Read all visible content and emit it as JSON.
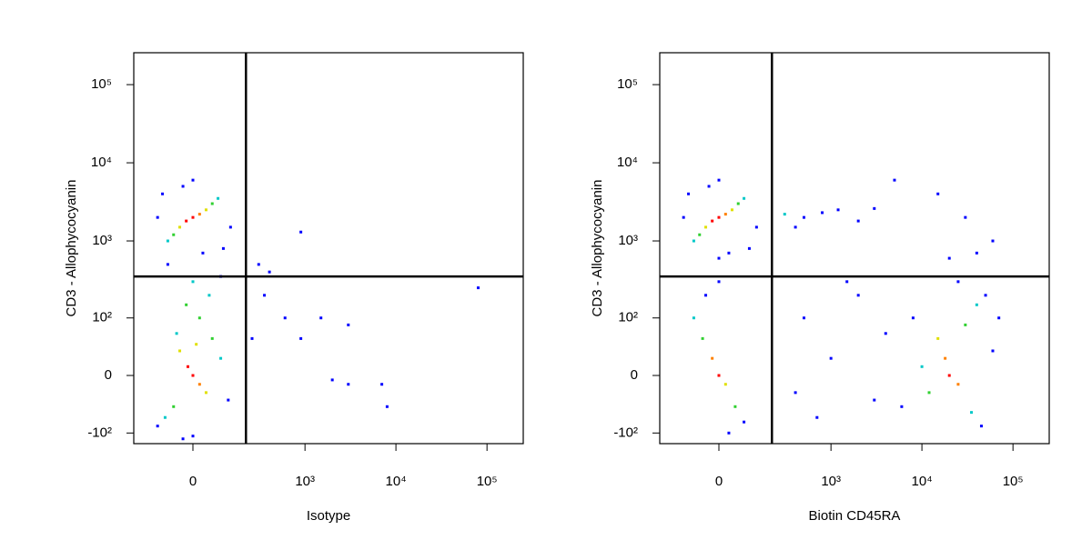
{
  "chart_data": [
    {
      "type": "scatter",
      "x_label": "Isotype",
      "y_label": "CD3 - Allophycocyanin",
      "xlim": [
        -250,
        250000
      ],
      "ylim": [
        -139,
        256000
      ],
      "xticks": [
        0,
        {
          "value": 1000,
          "label": "10³"
        },
        {
          "value": 10000,
          "label": "10⁴"
        },
        {
          "value": 100000,
          "label": "10⁵"
        }
      ],
      "yticks": [
        {
          "value": -100,
          "label": "-10²"
        },
        0,
        {
          "value": 100,
          "label": "10²"
        },
        {
          "value": 1000,
          "label": "10³"
        },
        {
          "value": 10000,
          "label": "10⁴"
        },
        {
          "value": 100000,
          "label": "10⁵"
        }
      ],
      "quadrant": {
        "x": 210,
        "y": 350
      },
      "x": [
        0,
        -20,
        20,
        -40,
        40,
        -60,
        60,
        -80,
        80,
        -100,
        100,
        0,
        -120,
        130,
        30,
        -30,
        0,
        -20,
        20,
        -50,
        50,
        -80,
        90,
        10,
        0,
        -15,
        20,
        -40,
        40,
        -60,
        60,
        -90,
        90,
        -120,
        120,
        0,
        -30,
        300,
        400,
        900,
        350,
        600,
        1500,
        3000,
        900,
        2000,
        3000,
        7000,
        8000,
        80000,
        250
      ],
      "y": [
        2000,
        1800,
        2200,
        1500,
        2500,
        1200,
        3000,
        1000,
        3500,
        4000,
        800,
        6000,
        2000,
        1500,
        700,
        5000,
        300,
        150,
        100,
        60,
        200,
        500,
        350,
        40,
        0,
        10,
        -10,
        30,
        -20,
        -40,
        50,
        -60,
        20,
        -80,
        -30,
        -110,
        -120,
        500,
        400,
        1300,
        200,
        100,
        100,
        80,
        50,
        -5,
        -10,
        -10,
        -40,
        250,
        50
      ],
      "colors": [
        "#ff0000",
        "#ff0000",
        "#ff8000",
        "#e0e000",
        "#e0e000",
        "#30d030",
        "#30d030",
        "#00c8c8",
        "#00c8c8",
        "#0000ff",
        "#0000ff",
        "#0000ff",
        "#0000ff",
        "#0000ff",
        "#0000ff",
        "#0000ff",
        "#00c8c8",
        "#30d030",
        "#30d030",
        "#00c8c8",
        "#00c8c8",
        "#0000ff",
        "#0000ff",
        "#e0e000",
        "#ff0000",
        "#ff0000",
        "#ff8000",
        "#e0e000",
        "#e0e000",
        "#30d030",
        "#30d030",
        "#00c8c8",
        "#00c8c8",
        "#0000ff",
        "#0000ff",
        "#0000ff",
        "#0000ff",
        "#0000ff",
        "#0000ff",
        "#0000ff",
        "#0000ff",
        "#0000ff",
        "#0000ff",
        "#0000ff",
        "#0000ff",
        "#0000ff",
        "#0000ff",
        "#0000ff",
        "#0000ff",
        "#0000ff",
        "#0000ff"
      ]
    },
    {
      "type": "scatter",
      "x_label": "Biotin CD45RA",
      "y_label": "CD3 - Allophycocyanin",
      "xlim": [
        -250,
        250000
      ],
      "ylim": [
        -139,
        256000
      ],
      "xticks": [
        0,
        {
          "value": 1000,
          "label": "10³"
        },
        {
          "value": 10000,
          "label": "10⁴"
        },
        {
          "value": 100000,
          "label": "10⁵"
        }
      ],
      "yticks": [
        {
          "value": -100,
          "label": "-10²"
        },
        0,
        {
          "value": 100,
          "label": "10²"
        },
        {
          "value": 1000,
          "label": "10³"
        },
        {
          "value": 10000,
          "label": "10⁴"
        },
        {
          "value": 100000,
          "label": "10⁵"
        }
      ],
      "quadrant": {
        "x": 210,
        "y": 350
      },
      "x": [
        0,
        -20,
        20,
        -40,
        40,
        -60,
        60,
        -80,
        80,
        -100,
        100,
        0,
        -120,
        130,
        30,
        -30,
        300,
        500,
        800,
        1200,
        2000,
        400,
        3000,
        5000,
        15000,
        30000,
        20000,
        40000,
        60000,
        0,
        -20,
        20,
        -50,
        50,
        -80,
        80,
        0,
        -40,
        30,
        0,
        20000,
        18000,
        25000,
        15000,
        30000,
        12000,
        40000,
        10000,
        35000,
        50000,
        8000,
        60000,
        45000,
        25000,
        6000,
        70000,
        500,
        1000,
        2000,
        3000,
        700,
        1500,
        4000,
        400
      ],
      "y": [
        2000,
        1800,
        2200,
        1500,
        2500,
        1200,
        3000,
        1000,
        3500,
        4000,
        800,
        6000,
        2000,
        1500,
        700,
        5000,
        2200,
        2000,
        2300,
        2500,
        1800,
        1500,
        2600,
        6000,
        4000,
        2000,
        600,
        700,
        1000,
        0,
        20,
        -10,
        50,
        -40,
        100,
        -70,
        300,
        200,
        -100,
        600,
        0,
        20,
        -10,
        50,
        80,
        -20,
        150,
        10,
        -50,
        200,
        100,
        30,
        -80,
        300,
        -40,
        100,
        100,
        20,
        200,
        -30,
        -60,
        300,
        60,
        -20
      ],
      "colors": [
        "#ff0000",
        "#ff0000",
        "#ff8000",
        "#e0e000",
        "#e0e000",
        "#30d030",
        "#30d030",
        "#00c8c8",
        "#00c8c8",
        "#0000ff",
        "#0000ff",
        "#0000ff",
        "#0000ff",
        "#0000ff",
        "#0000ff",
        "#0000ff",
        "#00c8c8",
        "#0000ff",
        "#0000ff",
        "#0000ff",
        "#0000ff",
        "#0000ff",
        "#0000ff",
        "#0000ff",
        "#0000ff",
        "#0000ff",
        "#0000ff",
        "#0000ff",
        "#0000ff",
        "#ff0000",
        "#ff8000",
        "#e0e000",
        "#30d030",
        "#30d030",
        "#00c8c8",
        "#0000ff",
        "#0000ff",
        "#0000ff",
        "#0000ff",
        "#0000ff",
        "#ff0000",
        "#ff8000",
        "#ff8000",
        "#e0e000",
        "#30d030",
        "#30d030",
        "#00c8c8",
        "#00c8c8",
        "#00c8c8",
        "#0000ff",
        "#0000ff",
        "#0000ff",
        "#0000ff",
        "#0000ff",
        "#0000ff",
        "#0000ff",
        "#0000ff",
        "#0000ff",
        "#0000ff",
        "#0000ff",
        "#0000ff",
        "#0000ff",
        "#0000ff",
        "#0000ff"
      ]
    }
  ]
}
